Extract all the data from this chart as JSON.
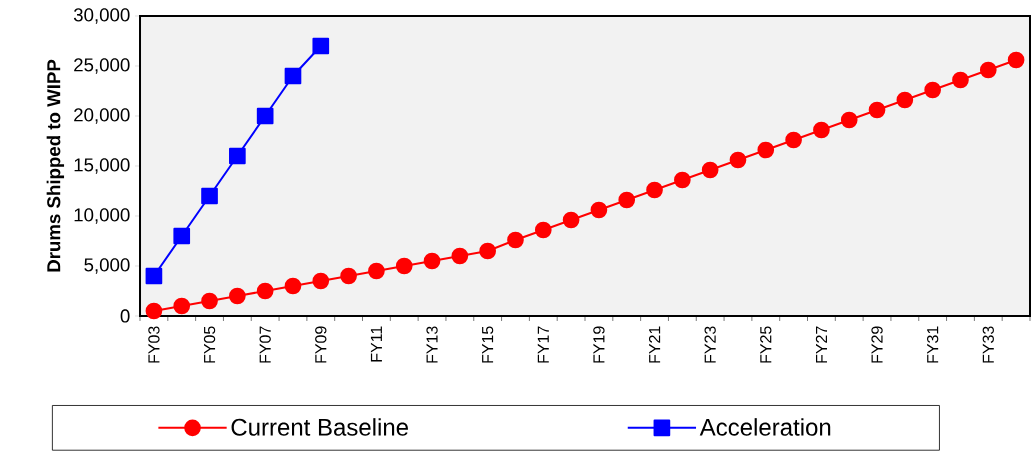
{
  "chart_data": {
    "type": "line",
    "ylabel": "Drums Shipped to WIPP",
    "categories": [
      "FY03",
      null,
      "FY05",
      null,
      "FY07",
      null,
      "FY09",
      null,
      "FY11",
      null,
      "FY13",
      null,
      "FY15",
      null,
      "FY17",
      null,
      "FY19",
      null,
      "FY21",
      null,
      "FY23",
      null,
      "FY25",
      null,
      "FY27",
      null,
      "FY29",
      null,
      "FY31",
      null,
      "FY33",
      null
    ],
    "series": [
      {
        "name": "Current Baseline",
        "color": "#ff0000",
        "marker": "circle",
        "values": [
          500,
          1000,
          1500,
          2000,
          2500,
          3000,
          3500,
          4000,
          4500,
          5000,
          5500,
          6000,
          6500,
          7600,
          8600,
          9600,
          10600,
          11600,
          12600,
          13600,
          14600,
          15600,
          16600,
          17600,
          18600,
          19600,
          20600,
          21600,
          22600,
          23600,
          24600,
          25600
        ]
      },
      {
        "name": "Acceleration",
        "color": "#0000ff",
        "marker": "square",
        "values": [
          4000,
          8000,
          12000,
          16000,
          20000,
          24000,
          27000,
          null,
          null,
          null,
          null,
          null,
          null,
          null,
          null,
          null,
          null,
          null,
          null,
          null,
          null,
          null,
          null,
          null,
          null,
          null,
          null,
          null,
          null,
          null,
          null,
          null
        ]
      }
    ],
    "ylim": [
      0,
      30000
    ],
    "yticks": [
      0,
      {
        "value": 5000,
        "label": "5,000"
      },
      {
        "value": 10000,
        "label": "10,000"
      },
      {
        "value": 15000,
        "label": "15,000"
      },
      {
        "value": 20000,
        "label": "20,000"
      },
      {
        "value": 25000,
        "label": "25,000"
      },
      {
        "value": 30000,
        "label": "30,000"
      }
    ],
    "grid": false,
    "legend": "bottom",
    "line_style": "solid"
  }
}
